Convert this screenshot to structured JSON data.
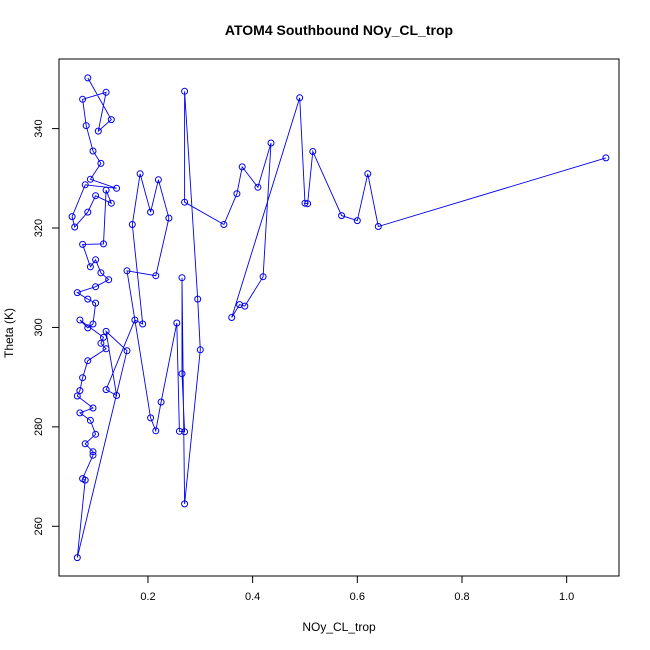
{
  "chart_data": {
    "type": "scatter",
    "title": "ATOM4 Southbound NOy_CL_trop",
    "xlabel": "NOy_CL_trop",
    "ylabel": "Theta (K)",
    "xlim": [
      0.03,
      1.1
    ],
    "ylim": [
      250,
      354
    ],
    "xticks": [
      0.2,
      0.4,
      0.6,
      0.8,
      1.0
    ],
    "xtick_labels": [
      "0.2",
      "0.4",
      "0.6",
      "0.8",
      "1.0"
    ],
    "yticks": [
      260,
      280,
      300,
      320,
      340
    ],
    "ytick_labels": [
      "260",
      "280",
      "300",
      "320",
      "340"
    ],
    "grid": false,
    "legend": "none",
    "colors": {
      "series": "#0000ee",
      "axes": "#000000",
      "background": "#ffffff"
    },
    "series": [
      {
        "marker": "open-circle",
        "connected": true,
        "points": [
          [
            0.085,
            350.2
          ],
          [
            0.13,
            341.8
          ],
          [
            0.105,
            339.5
          ],
          [
            0.12,
            347.3
          ],
          [
            0.075,
            345.9
          ],
          [
            0.082,
            340.6
          ],
          [
            0.095,
            335.5
          ],
          [
            0.11,
            333.0
          ],
          [
            0.09,
            329.8
          ],
          [
            0.14,
            328.0
          ],
          [
            0.08,
            328.7
          ],
          [
            0.055,
            322.3
          ],
          [
            0.06,
            320.2
          ],
          [
            0.085,
            323.2
          ],
          [
            0.1,
            326.5
          ],
          [
            0.13,
            325.0
          ],
          [
            0.12,
            327.6
          ],
          [
            0.115,
            316.8
          ],
          [
            0.075,
            316.7
          ],
          [
            0.09,
            312.2
          ],
          [
            0.1,
            313.6
          ],
          [
            0.11,
            311.0
          ],
          [
            0.125,
            309.6
          ],
          [
            0.1,
            308.2
          ],
          [
            0.065,
            307.0
          ],
          [
            0.085,
            305.7
          ],
          [
            0.1,
            304.9
          ],
          [
            0.095,
            300.7
          ],
          [
            0.085,
            299.9
          ],
          [
            0.07,
            301.5
          ],
          [
            0.115,
            298.0
          ],
          [
            0.11,
            296.8
          ],
          [
            0.12,
            295.7
          ],
          [
            0.085,
            293.3
          ],
          [
            0.075,
            289.9
          ],
          [
            0.07,
            287.3
          ],
          [
            0.065,
            286.2
          ],
          [
            0.095,
            283.8
          ],
          [
            0.07,
            282.8
          ],
          [
            0.09,
            281.3
          ],
          [
            0.1,
            278.5
          ],
          [
            0.08,
            276.6
          ],
          [
            0.095,
            275.0
          ],
          [
            0.095,
            274.3
          ],
          [
            0.075,
            269.6
          ],
          [
            0.08,
            269.3
          ],
          [
            0.065,
            253.7
          ],
          [
            0.16,
            295.3
          ],
          [
            0.12,
            299.2
          ],
          [
            0.14,
            286.3
          ],
          [
            0.12,
            287.5
          ],
          [
            0.175,
            301.5
          ],
          [
            0.19,
            300.7
          ],
          [
            0.17,
            320.7
          ],
          [
            0.185,
            330.9
          ],
          [
            0.205,
            323.2
          ],
          [
            0.22,
            329.7
          ],
          [
            0.24,
            322.0
          ],
          [
            0.215,
            310.4
          ],
          [
            0.16,
            311.4
          ],
          [
            0.205,
            281.8
          ],
          [
            0.215,
            279.2
          ],
          [
            0.225,
            285.0
          ],
          [
            0.255,
            300.9
          ],
          [
            0.26,
            279.1
          ],
          [
            0.27,
            279.0
          ],
          [
            0.265,
            290.7
          ],
          [
            0.265,
            310.0
          ],
          [
            0.27,
            264.5
          ],
          [
            0.3,
            295.5
          ],
          [
            0.295,
            305.7
          ],
          [
            0.27,
            347.5
          ],
          [
            0.27,
            325.2
          ],
          [
            0.345,
            320.7
          ],
          [
            0.37,
            326.9
          ],
          [
            0.38,
            332.3
          ],
          [
            0.41,
            328.2
          ],
          [
            0.435,
            337.1
          ],
          [
            0.42,
            310.2
          ],
          [
            0.385,
            304.3
          ],
          [
            0.375,
            304.6
          ],
          [
            0.36,
            302.0
          ],
          [
            0.49,
            346.2
          ],
          [
            0.5,
            325.0
          ],
          [
            0.505,
            324.9
          ],
          [
            0.515,
            335.4
          ],
          [
            0.57,
            322.5
          ],
          [
            0.6,
            321.5
          ],
          [
            0.62,
            330.9
          ],
          [
            0.64,
            320.3
          ],
          [
            1.075,
            334.1
          ]
        ]
      }
    ]
  }
}
